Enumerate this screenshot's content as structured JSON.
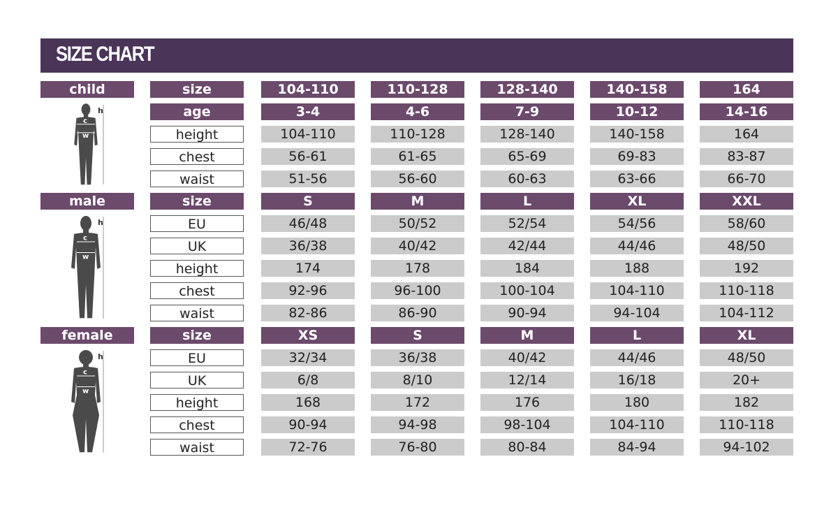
{
  "title": "SIZE CHART",
  "colors": {
    "header": "#4a3558",
    "purple": "#6b4a6b",
    "gray": "#cbcbcb"
  },
  "figure_labels": {
    "h": "h",
    "c": "c",
    "w": "w"
  },
  "sections": [
    {
      "name": "child",
      "rows": [
        {
          "label": "size",
          "type": "head",
          "values": [
            "104-110",
            "110-128",
            "128-140",
            "140-158",
            "164"
          ]
        },
        {
          "label": "age",
          "type": "head",
          "values": [
            "3-4",
            "4-6",
            "7-9",
            "10-12",
            "14-16"
          ]
        },
        {
          "label": "height",
          "values": [
            "104-110",
            "110-128",
            "128-140",
            "140-158",
            "164"
          ]
        },
        {
          "label": "chest",
          "values": [
            "56-61",
            "61-65",
            "65-69",
            "69-83",
            "83-87"
          ]
        },
        {
          "label": "waist",
          "values": [
            "51-56",
            "56-60",
            "60-63",
            "63-66",
            "66-70"
          ]
        }
      ]
    },
    {
      "name": "male",
      "rows": [
        {
          "label": "size",
          "type": "head",
          "values": [
            "S",
            "M",
            "L",
            "XL",
            "XXL"
          ]
        },
        {
          "label": "EU",
          "values": [
            "46/48",
            "50/52",
            "52/54",
            "54/56",
            "58/60"
          ]
        },
        {
          "label": "UK",
          "values": [
            "36/38",
            "40/42",
            "42/44",
            "44/46",
            "48/50"
          ]
        },
        {
          "label": "height",
          "values": [
            "174",
            "178",
            "184",
            "188",
            "192"
          ]
        },
        {
          "label": "chest",
          "values": [
            "92-96",
            "96-100",
            "100-104",
            "104-110",
            "110-118"
          ]
        },
        {
          "label": "waist",
          "values": [
            "82-86",
            "86-90",
            "90-94",
            "94-104",
            "104-112"
          ]
        }
      ]
    },
    {
      "name": "female",
      "rows": [
        {
          "label": "size",
          "type": "head",
          "values": [
            "XS",
            "S",
            "M",
            "L",
            "XL"
          ]
        },
        {
          "label": "EU",
          "values": [
            "32/34",
            "36/38",
            "40/42",
            "44/46",
            "48/50"
          ]
        },
        {
          "label": "UK",
          "values": [
            "6/8",
            "8/10",
            "12/14",
            "16/18",
            "20+"
          ]
        },
        {
          "label": "height",
          "values": [
            "168",
            "172",
            "176",
            "180",
            "182"
          ]
        },
        {
          "label": "chest",
          "values": [
            "90-94",
            "94-98",
            "98-104",
            "104-110",
            "110-118"
          ]
        },
        {
          "label": "waist",
          "values": [
            "72-76",
            "76-80",
            "80-84",
            "84-94",
            "94-102"
          ]
        }
      ]
    }
  ]
}
